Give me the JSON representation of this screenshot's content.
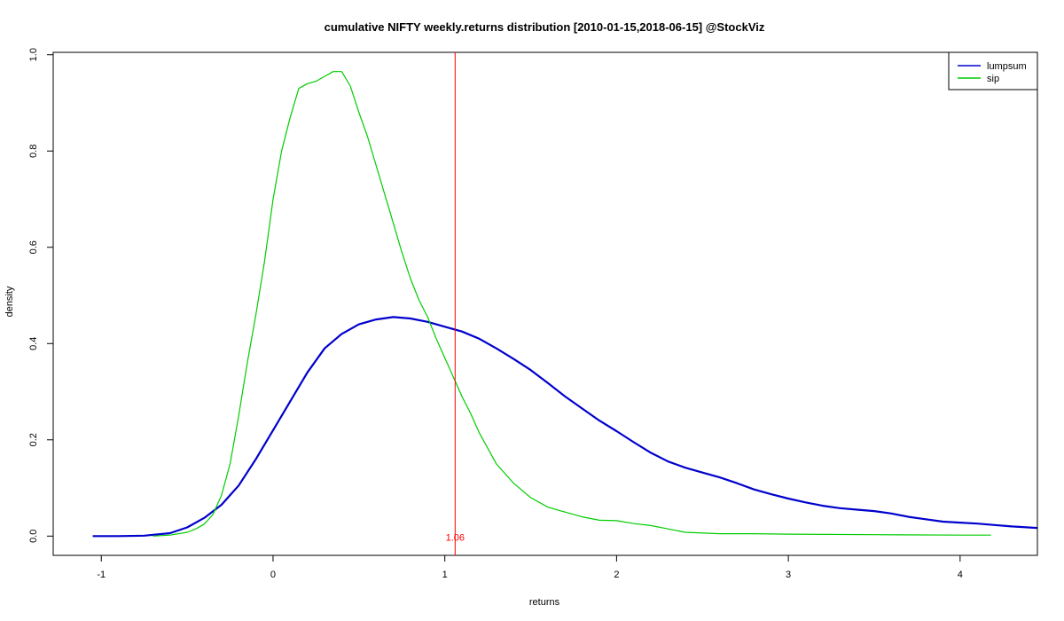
{
  "chart_data": {
    "type": "line",
    "title": "cumulative NIFTY weekly.returns distribution [2010-01-15,2018-06-15] @StockViz",
    "xlabel": "returns",
    "ylabel": "density",
    "xlim": [
      -1.28,
      4.45
    ],
    "ylim": [
      -0.04,
      1.005
    ],
    "xticks": [
      -1,
      0,
      1,
      2,
      3,
      4
    ],
    "yticks": [
      0.0,
      0.2,
      0.4,
      0.6,
      0.8,
      1.0
    ],
    "xtick_labels": [
      "-1",
      "0",
      "1",
      "2",
      "3",
      "4"
    ],
    "ytick_labels": [
      "0.0",
      "0.2",
      "0.4",
      "0.6",
      "0.8",
      "1.0"
    ],
    "grid": false,
    "legend_position": "top-right",
    "vline": {
      "x": 1.06,
      "label": "1.06",
      "color": "#ff0000"
    },
    "series": [
      {
        "name": "lumpsum",
        "color": "#0000cd",
        "x": [
          -1.05,
          -0.9,
          -0.75,
          -0.6,
          -0.5,
          -0.4,
          -0.3,
          -0.2,
          -0.1,
          0.0,
          0.1,
          0.2,
          0.3,
          0.4,
          0.5,
          0.6,
          0.7,
          0.8,
          0.9,
          1.0,
          1.1,
          1.2,
          1.3,
          1.4,
          1.5,
          1.6,
          1.7,
          1.8,
          1.9,
          2.0,
          2.1,
          2.2,
          2.3,
          2.4,
          2.5,
          2.6,
          2.7,
          2.8,
          2.9,
          3.0,
          3.1,
          3.2,
          3.3,
          3.4,
          3.5,
          3.6,
          3.7,
          3.8,
          3.9,
          4.0,
          4.1,
          4.2,
          4.3,
          4.45
        ],
        "y": [
          0.0,
          0.0,
          0.001,
          0.006,
          0.018,
          0.038,
          0.065,
          0.105,
          0.16,
          0.22,
          0.28,
          0.34,
          0.39,
          0.42,
          0.44,
          0.45,
          0.455,
          0.452,
          0.445,
          0.435,
          0.425,
          0.41,
          0.39,
          0.368,
          0.345,
          0.318,
          0.29,
          0.265,
          0.24,
          0.218,
          0.195,
          0.173,
          0.155,
          0.142,
          0.132,
          0.122,
          0.11,
          0.097,
          0.087,
          0.078,
          0.07,
          0.063,
          0.058,
          0.055,
          0.052,
          0.047,
          0.04,
          0.035,
          0.03,
          0.028,
          0.026,
          0.023,
          0.02,
          0.017
        ]
      },
      {
        "name": "sip",
        "color": "#00cc00",
        "x": [
          -0.7,
          -0.6,
          -0.5,
          -0.45,
          -0.4,
          -0.35,
          -0.3,
          -0.25,
          -0.2,
          -0.15,
          -0.1,
          -0.05,
          0.0,
          0.05,
          0.1,
          0.15,
          0.2,
          0.25,
          0.3,
          0.35,
          0.4,
          0.45,
          0.5,
          0.55,
          0.6,
          0.65,
          0.7,
          0.75,
          0.8,
          0.85,
          0.9,
          0.95,
          1.0,
          1.05,
          1.1,
          1.15,
          1.2,
          1.3,
          1.4,
          1.5,
          1.6,
          1.7,
          1.8,
          1.9,
          2.0,
          2.1,
          2.2,
          2.3,
          2.4,
          2.6,
          2.8,
          3.0,
          3.5,
          4.0,
          4.18
        ],
        "y": [
          0.0,
          0.002,
          0.008,
          0.015,
          0.025,
          0.045,
          0.085,
          0.15,
          0.25,
          0.36,
          0.46,
          0.57,
          0.7,
          0.8,
          0.87,
          0.93,
          0.94,
          0.945,
          0.955,
          0.965,
          0.965,
          0.935,
          0.88,
          0.83,
          0.77,
          0.71,
          0.65,
          0.59,
          0.535,
          0.49,
          0.455,
          0.41,
          0.37,
          0.33,
          0.29,
          0.255,
          0.215,
          0.15,
          0.11,
          0.08,
          0.06,
          0.05,
          0.04,
          0.033,
          0.032,
          0.026,
          0.022,
          0.015,
          0.008,
          0.005,
          0.005,
          0.004,
          0.003,
          0.002,
          0.002
        ]
      }
    ]
  }
}
